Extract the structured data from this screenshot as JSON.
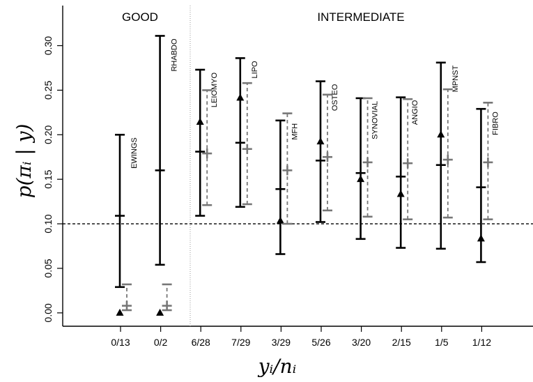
{
  "chart_data": {
    "type": "interval",
    "ylabel": "p(πᵢ | y)",
    "xlabel": "yᵢ/nᵢ",
    "ylim": [
      -0.015,
      0.345
    ],
    "yticks": [
      "0.00",
      "0.05",
      "0.10",
      "0.15",
      "0.20",
      "0.25",
      "0.30"
    ],
    "reference_line": 0.1,
    "groups": [
      {
        "label": "GOOD"
      },
      {
        "label": "INTERMEDIATE"
      }
    ],
    "categories": [
      "0/13",
      "0/2",
      "6/28",
      "7/29",
      "3/29",
      "5/26",
      "3/20",
      "2/15",
      "1/5",
      "1/12"
    ],
    "sarcoma_names": [
      "EWINGS",
      "RHABDO",
      "LEIOMYO",
      "LIPO",
      "MFH",
      "OSTEO",
      "SYNOVIAL",
      "ANGIO",
      "MPNST",
      "FIBRO"
    ],
    "observed_rates": [
      0.0,
      0.0,
      0.2143,
      0.2414,
      0.1034,
      0.1923,
      0.15,
      0.1333,
      0.2,
      0.0833
    ],
    "series": [
      {
        "style": "solid black",
        "lower": [
          0.029,
          0.054,
          0.109,
          0.119,
          0.066,
          0.102,
          0.083,
          0.073,
          0.072,
          0.057
        ],
        "median": [
          0.109,
          0.16,
          0.181,
          0.191,
          0.139,
          0.171,
          0.157,
          0.153,
          0.166,
          0.141
        ],
        "upper": [
          0.2,
          0.311,
          0.273,
          0.286,
          0.216,
          0.26,
          0.241,
          0.242,
          0.281,
          0.229
        ]
      },
      {
        "style": "dashed gray",
        "lower": [
          0.003,
          0.003,
          0.121,
          0.122,
          0.1,
          0.115,
          0.108,
          0.105,
          0.107,
          0.105
        ],
        "median": [
          0.008,
          0.008,
          0.179,
          0.184,
          0.16,
          0.175,
          0.169,
          0.168,
          0.172,
          0.169
        ],
        "upper": [
          0.032,
          0.032,
          0.25,
          0.258,
          0.224,
          0.245,
          0.241,
          0.24,
          0.251,
          0.236
        ]
      }
    ],
    "colors": {
      "series1": "#000000",
      "series2": "#777777",
      "reference": "#000000",
      "divider": "#999999"
    }
  }
}
